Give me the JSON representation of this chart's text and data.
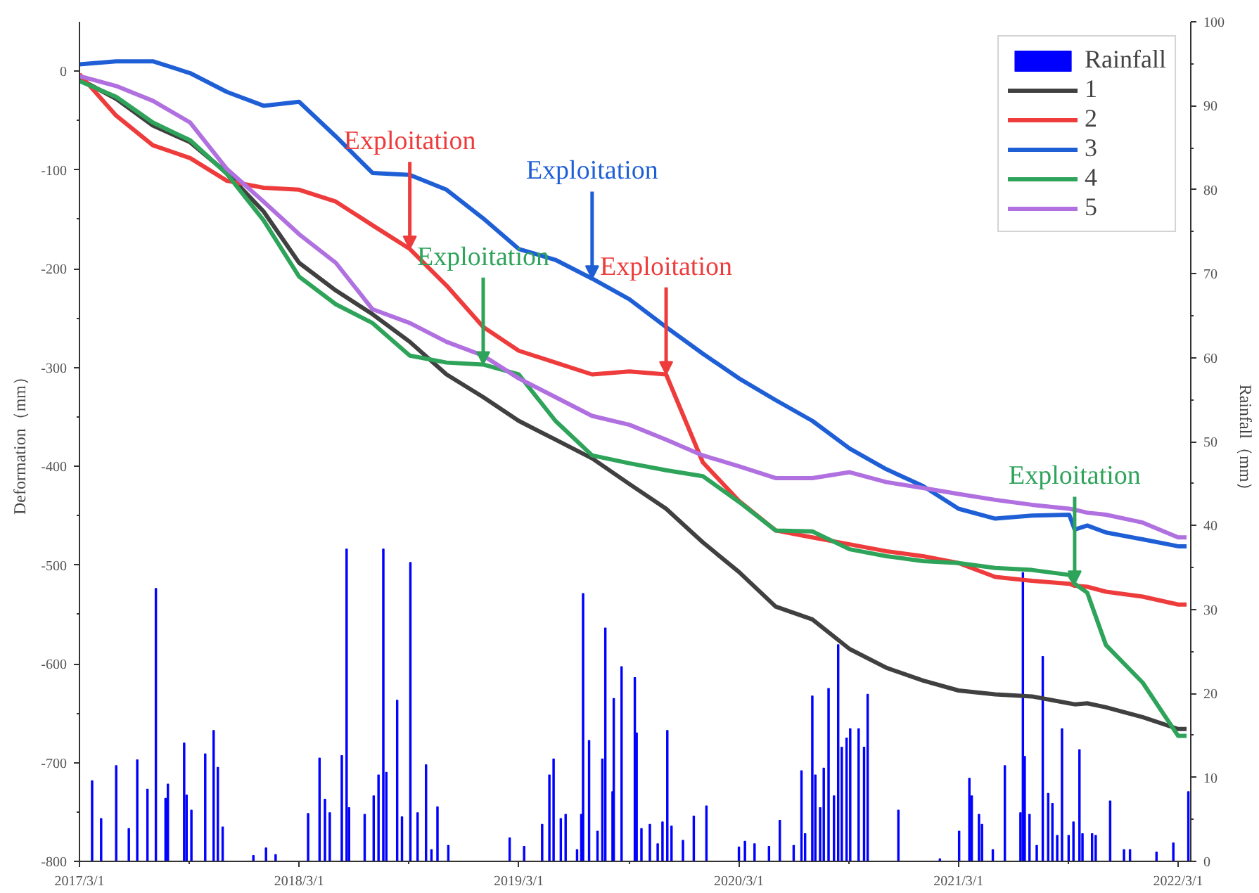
{
  "chart_data": {
    "type": "line",
    "xlabel": null,
    "ylabel": "Deformation（mm）",
    "y2label": "Rainfall（mm）",
    "x": [
      "2017-03-01",
      "2017-05-01",
      "2017-07-01",
      "2017-09-01",
      "2017-11-01",
      "2018-01-01",
      "2018-03-01",
      "2018-05-01",
      "2018-07-01",
      "2018-09-01",
      "2018-11-01",
      "2019-01-01",
      "2019-03-01",
      "2019-05-01",
      "2019-07-01",
      "2019-09-01",
      "2019-11-01",
      "2020-01-01",
      "2020-03-01",
      "2020-05-01",
      "2020-07-01",
      "2020-09-01",
      "2020-11-01",
      "2021-01-01",
      "2021-03-01",
      "2021-05-01",
      "2021-07-01",
      "2021-09-01",
      "2021-09-10",
      "2021-10-01",
      "2021-11-01",
      "2022-01-01",
      "2022-03-01",
      "2022-03-15"
    ],
    "series": [
      {
        "type": "bar",
        "axis": "y2",
        "name": "Rainfall",
        "color": "#0000ff",
        "x": [
          "2017-03-22",
          "2017-04-06",
          "2017-05-01",
          "2017-05-22",
          "2017-06-05",
          "2017-06-22",
          "2017-07-06",
          "2017-07-22",
          "2017-07-26",
          "2017-08-22",
          "2017-08-26",
          "2017-09-03",
          "2017-09-26",
          "2017-10-10",
          "2017-10-17",
          "2017-10-25",
          "2017-12-15",
          "2018-01-05",
          "2018-01-21",
          "2018-03-16",
          "2018-04-04",
          "2018-04-13",
          "2018-04-21",
          "2018-05-11",
          "2018-05-19",
          "2018-05-23",
          "2018-06-18",
          "2018-07-03",
          "2018-07-11",
          "2018-07-19",
          "2018-07-24",
          "2018-08-11",
          "2018-08-19",
          "2018-09-02",
          "2018-09-14",
          "2018-09-28",
          "2018-10-07",
          "2018-10-17",
          "2018-11-04",
          "2019-02-14",
          "2019-03-10",
          "2019-04-09",
          "2019-04-21",
          "2019-04-28",
          "2019-05-10",
          "2019-05-18",
          "2019-06-06",
          "2019-06-13",
          "2019-06-16",
          "2019-06-26",
          "2019-07-10",
          "2019-07-18",
          "2019-07-23",
          "2019-08-04",
          "2019-08-06",
          "2019-08-19",
          "2019-09-10",
          "2019-09-13",
          "2019-09-21",
          "2019-10-05",
          "2019-10-18",
          "2019-10-26",
          "2019-11-03",
          "2019-11-10",
          "2019-11-29",
          "2019-12-17",
          "2020-01-07",
          "2020-03-01",
          "2020-03-11",
          "2020-03-27",
          "2020-04-20",
          "2020-05-08",
          "2020-05-31",
          "2020-06-13",
          "2020-06-19",
          "2020-07-01",
          "2020-07-06",
          "2020-07-14",
          "2020-07-20",
          "2020-07-28",
          "2020-08-06",
          "2020-08-13",
          "2020-08-19",
          "2020-08-27",
          "2020-09-02",
          "2020-09-16",
          "2020-09-25",
          "2020-10-01",
          "2020-11-21",
          "2021-01-29",
          "2021-03-02",
          "2021-03-19",
          "2021-03-23",
          "2021-04-04",
          "2021-04-09",
          "2021-04-27",
          "2021-05-17",
          "2021-06-12",
          "2021-06-16",
          "2021-06-19",
          "2021-06-27",
          "2021-07-09",
          "2021-07-19",
          "2021-07-28",
          "2021-08-04",
          "2021-08-12",
          "2021-08-20",
          "2021-08-31",
          "2021-09-08",
          "2021-09-18",
          "2021-09-23",
          "2021-10-09",
          "2021-10-15",
          "2021-11-08",
          "2021-12-01",
          "2021-12-11",
          "2022-01-24",
          "2022-02-21",
          "2022-03-18"
        ],
        "values": [
          9.6,
          5.1,
          11.4,
          3.9,
          12.1,
          8.6,
          32.5,
          7.5,
          9.2,
          14.1,
          7.9,
          6.1,
          12.8,
          15.6,
          11.2,
          4.1,
          0.7,
          1.6,
          0.8,
          5.7,
          12.3,
          7.4,
          5.8,
          12.6,
          37.2,
          6.4,
          5.6,
          7.8,
          10.3,
          37.2,
          10.6,
          19.2,
          5.3,
          35.6,
          5.8,
          11.5,
          1.4,
          6.5,
          1.9,
          2.8,
          1.8,
          4.4,
          10.3,
          12.2,
          5.1,
          5.6,
          1.4,
          5.6,
          31.9,
          14.4,
          3.6,
          12.2,
          27.8,
          8.3,
          19.4,
          23.2,
          21.9,
          15.3,
          3.9,
          4.4,
          2.1,
          4.7,
          15.6,
          4.2,
          2.5,
          5.4,
          6.6,
          1.7,
          2.4,
          2.1,
          1.8,
          4.9,
          1.9,
          10.8,
          3.3,
          19.7,
          10.3,
          6.4,
          11.1,
          20.6,
          7.8,
          25.8,
          13.6,
          14.7,
          15.8,
          15.8,
          13.6,
          19.9,
          6.1,
          0.3,
          3.6,
          9.9,
          7.8,
          5.6,
          4.4,
          1.4,
          11.4,
          5.8,
          34.4,
          12.5,
          5.6,
          1.9,
          24.4,
          8.1,
          6.9,
          3.1,
          15.8,
          3.1,
          4.7,
          13.3,
          3.3,
          3.3,
          3.1,
          7.2,
          1.4,
          1.4,
          1.1,
          2.2,
          8.3
        ]
      },
      {
        "name": "1",
        "color": "#404040",
        "values": [
          -8,
          -28,
          -55,
          -72,
          -103,
          -142,
          -194,
          -222,
          -246,
          -274,
          -307,
          -330,
          -354,
          -373,
          -392,
          -418,
          -443,
          -477,
          -507,
          -542,
          -555,
          -585,
          -604,
          -617,
          -627,
          -631,
          -633,
          -640,
          -641,
          -640,
          -644,
          -654,
          -666,
          -666
        ]
      },
      {
        "name": "2",
        "color": "#ee3b3b",
        "values": [
          -3,
          -45,
          -75,
          -88,
          -111,
          -118,
          -120,
          -132,
          -156,
          -180,
          -217,
          -259,
          -283,
          -295,
          -307,
          -304,
          -307,
          -396,
          -435,
          -465,
          -472,
          -479,
          -486,
          -491,
          -498,
          -512,
          -516,
          -519,
          -521,
          -522,
          -527,
          -532,
          -540,
          -540
        ]
      },
      {
        "name": "3",
        "color": "#1f5fd6",
        "values": [
          7,
          10,
          10,
          -2,
          -21,
          -35,
          -31,
          -66,
          -103,
          -105,
          -120,
          -149,
          -180,
          -191,
          -210,
          -231,
          -259,
          -286,
          -311,
          -333,
          -354,
          -382,
          -403,
          -420,
          -443,
          -453,
          -450,
          -449,
          -464,
          -460,
          -467,
          -474,
          -481,
          -481
        ]
      },
      {
        "name": "4",
        "color": "#2ea35a",
        "values": [
          -10,
          -26,
          -52,
          -70,
          -104,
          -151,
          -208,
          -236,
          -255,
          -288,
          -295,
          -297,
          -307,
          -354,
          -389,
          -397,
          -404,
          -410,
          -436,
          -465,
          -466,
          -484,
          -491,
          -496,
          -498,
          -503,
          -505,
          -510,
          -519,
          -528,
          -581,
          -619,
          -673,
          -673
        ]
      },
      {
        "name": "5",
        "color": "#b070e0",
        "values": [
          -5,
          -15,
          -30,
          -52,
          -99,
          -132,
          -165,
          -194,
          -241,
          -255,
          -274,
          -288,
          -311,
          -330,
          -349,
          -358,
          -373,
          -389,
          -400,
          -412,
          -412,
          -406,
          -416,
          -422,
          -428,
          -434,
          -439,
          -443,
          -444,
          -447,
          -449,
          -457,
          -472,
          -472
        ]
      }
    ],
    "annotations": [
      {
        "text": "Exploitation",
        "x": "2018-09-01",
        "y": -180
      },
      {
        "text": "Exploitation",
        "x": "2019-07-01",
        "y": -210
      },
      {
        "text": "Exploitation",
        "x": "2019-11-01",
        "y": -307
      },
      {
        "text": "Exploitation",
        "x": "2019-01-01",
        "y": -297
      },
      {
        "text": "Exploitation",
        "x": "2021-09-10",
        "y": -519
      }
    ],
    "xlim": [
      "2017-03-01",
      "2022-03-22"
    ],
    "xticks": [
      {
        "value": "2017-03-01",
        "label": "2017/3/1"
      },
      {
        "value": "2018-03-01",
        "label": "2018/3/1"
      },
      {
        "value": "2019-03-01",
        "label": "2019/3/1"
      },
      {
        "value": "2020-03-01",
        "label": "2020/3/1"
      },
      {
        "value": "2021-03-01",
        "label": "2021/3/1"
      },
      {
        "value": "2022-03-01",
        "label": "2022/3/1"
      }
    ],
    "ylim": [
      -800,
      50
    ],
    "yticks": [
      -800,
      -700,
      -600,
      -500,
      -400,
      -300,
      -200,
      -100,
      0
    ],
    "y2lim": [
      0,
      100
    ],
    "y2ticks": [
      0,
      10,
      20,
      30,
      40,
      50,
      60,
      70,
      80,
      90,
      100
    ],
    "legend": "top right",
    "grid": false,
    "line_style": "solid",
    "marker": "none"
  }
}
